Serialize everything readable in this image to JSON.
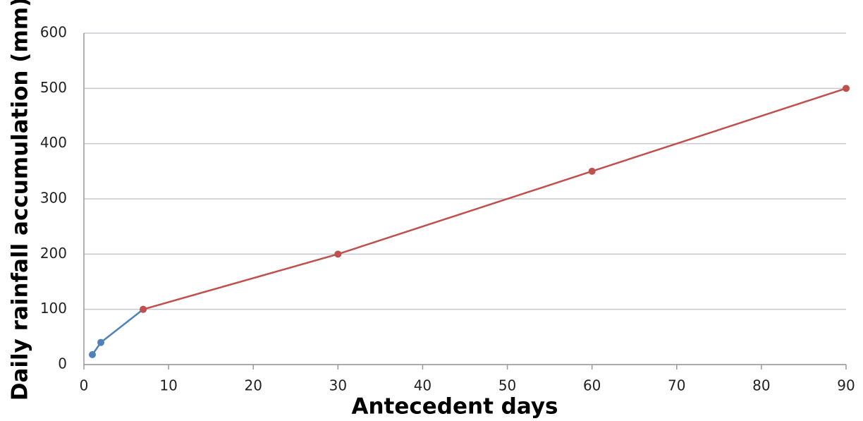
{
  "chart_data": {
    "type": "line",
    "x_label": "Antecedent days",
    "y_label": "Daily rainfall accumulation (mm)",
    "series": [
      {
        "color": "#4f81bd",
        "x": [
          1,
          2,
          7
        ],
        "values": [
          18,
          40,
          100
        ]
      },
      {
        "color": "#c0504d",
        "x": [
          7,
          30,
          60,
          90
        ],
        "values": [
          100,
          200,
          350,
          500
        ]
      }
    ],
    "xlim": [
      0,
      90
    ],
    "xticks": [
      0,
      10,
      20,
      30,
      40,
      50,
      60,
      70,
      80,
      90
    ],
    "ylim": [
      0,
      600
    ],
    "yticks": [
      0,
      100,
      200,
      300,
      400,
      500,
      600
    ],
    "grid": true
  }
}
